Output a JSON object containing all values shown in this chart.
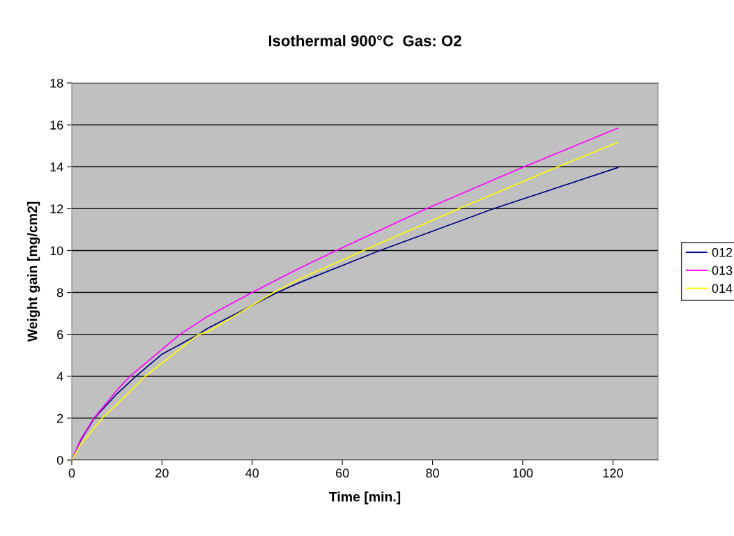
{
  "chart_data": {
    "type": "line",
    "title": "Isothermal 900°C  Gas: O2",
    "xlabel": "Time [min.]",
    "ylabel": "Weight gain [mg/cm2]",
    "xlim": [
      0,
      130
    ],
    "xticks": [
      0,
      20,
      40,
      60,
      80,
      100,
      120
    ],
    "ylim": [
      0,
      18
    ],
    "yticks": [
      0,
      2,
      4,
      6,
      8,
      10,
      12,
      14,
      16,
      18
    ],
    "grid": "y",
    "legend": "right",
    "marker": "none",
    "line_style": "solid",
    "series": [
      {
        "name": "012",
        "color": "#000080",
        "x": [
          0,
          2,
          5,
          10,
          14.2,
          20,
          28.1,
          30,
          45.6,
          50.6,
          68.3,
          93.6,
          121.1
        ],
        "values": [
          0,
          0.95,
          2,
          3.16,
          4,
          5.05,
          6,
          6.27,
          8,
          8.48,
          10,
          12,
          13.96
        ]
      },
      {
        "name": "013",
        "color": "#ff00ff",
        "x": [
          0,
          2,
          4.9,
          10,
          12.9,
          24,
          30,
          40,
          50.6,
          58.6,
          78.7,
          100.3,
          121.1
        ],
        "values": [
          0,
          1.0,
          2,
          3.33,
          4,
          6,
          6.84,
          8,
          9.17,
          10,
          12,
          14,
          15.84
        ]
      },
      {
        "name": "014",
        "color": "#ffff00",
        "x": [
          0,
          2,
          6.75,
          10,
          16.3,
          28.1,
          30,
          44.8,
          50.6,
          64.7,
          85.9,
          107.8,
          121.1
        ],
        "values": [
          0,
          0.75,
          2,
          2.66,
          4,
          6,
          6.1,
          8,
          8.65,
          10,
          12,
          14,
          15.16
        ]
      }
    ]
  }
}
